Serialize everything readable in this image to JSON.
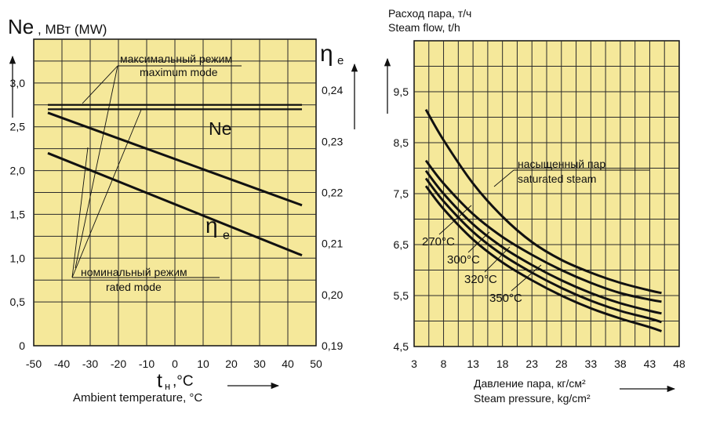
{
  "colors": {
    "plot_bg": "#f5e89a",
    "grid": "#2a2a2a",
    "curve": "#111111",
    "page_bg": "#ffffff"
  },
  "chart_data": [
    {
      "type": "line",
      "left_axis": {
        "symbol": "Nе",
        "label": ", МВт (MW)",
        "range": [
          0,
          3.5
        ],
        "ticks": [
          "0",
          "0,5",
          "1,0",
          "1,5",
          "2,0",
          "2,5",
          "3,0"
        ]
      },
      "right_axis": {
        "symbol": "η",
        "subscript": "e",
        "range": [
          0.19,
          0.25
        ],
        "ticks": [
          "0,19",
          "0,20",
          "0,21",
          "0,22",
          "0,23",
          "0,24"
        ]
      },
      "x_axis": {
        "symbol": "t",
        "subscript": "н",
        "label": ",°C",
        "caption": "Ambient temperature, °C",
        "range": [
          -50,
          50
        ],
        "ticks": [
          "-50",
          "-40",
          "-30",
          "-20",
          "-10",
          "0",
          "10",
          "20",
          "30",
          "40",
          "50"
        ]
      },
      "annotations": {
        "max_ru": "максимальный режим",
        "max_en": "maximum mode",
        "rated_ru": "номинальный режим",
        "rated_en": "rated mode",
        "ne_label": "Nе",
        "eta_label": "η",
        "eta_sub": "е"
      },
      "series": [
        {
          "label": "max_Ne",
          "axis": "left",
          "x": [
            -45,
            45
          ],
          "y": [
            2.75,
            2.75
          ]
        },
        {
          "label": "rated_Ne",
          "axis": "left",
          "x": [
            -45,
            45
          ],
          "y": [
            2.7,
            2.7
          ]
        },
        {
          "label": "max_eta",
          "axis": "right",
          "x": [
            -45,
            45
          ],
          "y": [
            0.2356,
            0.2175
          ]
        },
        {
          "label": "rated_eta",
          "axis": "right",
          "x": [
            -45,
            45
          ],
          "y": [
            0.2277,
            0.2077
          ]
        }
      ]
    },
    {
      "type": "line",
      "title_ru": "Расход пара, т/ч",
      "title_en": "Steam flow, t/h",
      "y_axis": {
        "range": [
          4.5,
          10.5
        ],
        "ticks": [
          "4,5",
          "5,5",
          "6,5",
          "7,5",
          "8,5",
          "9,5"
        ]
      },
      "x_axis": {
        "range": [
          3,
          48
        ],
        "ticks": [
          "3",
          "8",
          "13",
          "18",
          "23",
          "28",
          "33",
          "38",
          "43",
          "48"
        ],
        "label_ru": "Давление пара, кг/см²",
        "label_en": "Steam pressure, kg/cm²"
      },
      "annotations": {
        "sat_ru": "насыщенный пар",
        "sat_en": "saturated steam"
      },
      "series": [
        {
          "name": "насыщенный пар",
          "x": [
            5,
            8,
            13,
            18,
            23,
            28,
            33,
            38,
            43,
            45
          ],
          "y": [
            9.15,
            8.55,
            7.7,
            7.05,
            6.55,
            6.2,
            5.95,
            5.75,
            5.6,
            5.55
          ]
        },
        {
          "name": "270°C",
          "x": [
            5,
            8,
            13,
            18,
            23,
            28,
            33,
            38,
            43,
            45
          ],
          "y": [
            8.15,
            7.7,
            7.1,
            6.65,
            6.3,
            6.0,
            5.75,
            5.55,
            5.42,
            5.38
          ]
        },
        {
          "name": "300°C",
          "x": [
            5,
            8,
            13,
            18,
            23,
            28,
            33,
            38,
            43,
            45
          ],
          "y": [
            7.95,
            7.5,
            6.9,
            6.45,
            6.1,
            5.8,
            5.55,
            5.35,
            5.2,
            5.15
          ]
        },
        {
          "name": "320°C",
          "x": [
            5,
            8,
            13,
            18,
            23,
            28,
            33,
            38,
            43,
            45
          ],
          "y": [
            7.8,
            7.35,
            6.75,
            6.3,
            5.95,
            5.65,
            5.4,
            5.2,
            5.05,
            4.98
          ]
        },
        {
          "name": "350°C",
          "x": [
            5,
            8,
            13,
            18,
            23,
            28,
            33,
            38,
            43,
            45
          ],
          "y": [
            7.65,
            7.2,
            6.6,
            6.15,
            5.8,
            5.5,
            5.25,
            5.05,
            4.88,
            4.8
          ]
        }
      ]
    }
  ]
}
